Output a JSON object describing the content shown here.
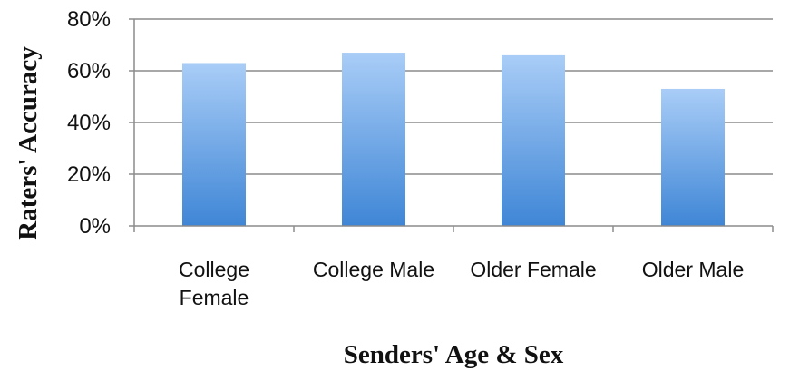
{
  "chart_data": {
    "type": "bar",
    "title": "",
    "xlabel": "Senders' Age & Sex",
    "ylabel": "Raters' Accuracy",
    "categories": [
      [
        "College",
        "Female"
      ],
      [
        "College Male"
      ],
      [
        "Older Female"
      ],
      [
        "Older Male"
      ]
    ],
    "values": [
      63,
      67,
      66,
      53
    ],
    "ylim": [
      0,
      80
    ],
    "yticks": [
      0,
      20,
      40,
      60,
      80
    ],
    "ytick_labels": [
      "0%",
      "20%",
      "40%",
      "60%",
      "80%"
    ],
    "grid": true,
    "legend": "none",
    "colors": {
      "bar_top": "#a9cdf7",
      "bar_bottom": "#3f86d6",
      "grid": "#8c8c8c",
      "axis": "#8c8c8c"
    }
  }
}
